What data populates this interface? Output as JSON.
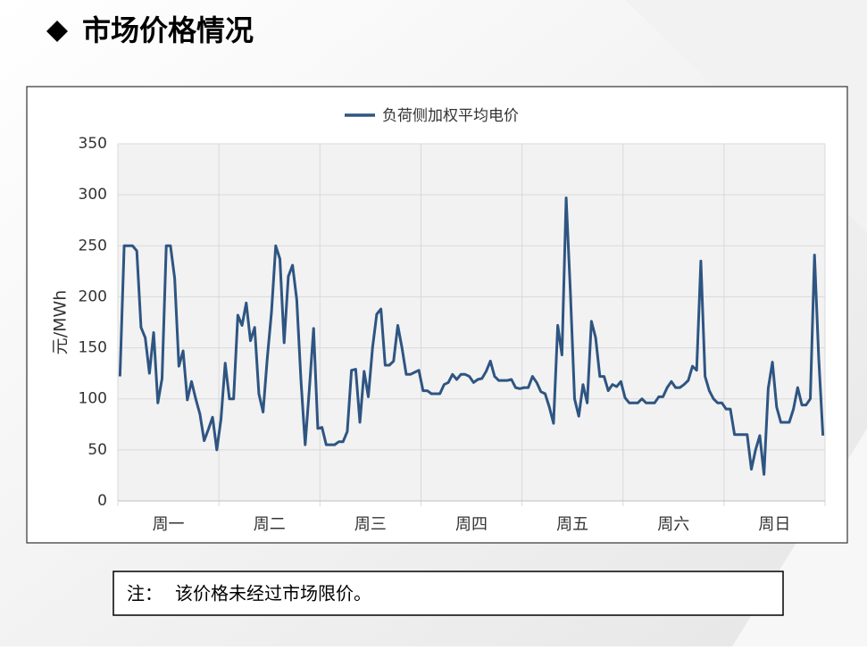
{
  "header": {
    "title": "市场价格情况"
  },
  "chart_data": {
    "type": "line",
    "y_label": "元/MWh",
    "categories": [
      null,
      null,
      null,
      null,
      null,
      null,
      null,
      null,
      null,
      null,
      null,
      null,
      "周一",
      null,
      null,
      null,
      null,
      null,
      null,
      null,
      null,
      null,
      null,
      null,
      null,
      null,
      null,
      null,
      null,
      null,
      null,
      null,
      null,
      null,
      null,
      null,
      "周二",
      null,
      null,
      null,
      null,
      null,
      null,
      null,
      null,
      null,
      null,
      null,
      null,
      null,
      null,
      null,
      null,
      null,
      null,
      null,
      null,
      null,
      null,
      null,
      "周三",
      null,
      null,
      null,
      null,
      null,
      null,
      null,
      null,
      null,
      null,
      null,
      null,
      null,
      null,
      null,
      null,
      null,
      null,
      null,
      null,
      null,
      null,
      null,
      "周四",
      null,
      null,
      null,
      null,
      null,
      null,
      null,
      null,
      null,
      null,
      null,
      null,
      null,
      null,
      null,
      null,
      null,
      null,
      null,
      null,
      null,
      null,
      null,
      "周五",
      null,
      null,
      null,
      null,
      null,
      null,
      null,
      null,
      null,
      null,
      null,
      null,
      null,
      null,
      null,
      null,
      null,
      null,
      null,
      null,
      null,
      null,
      null,
      "周六",
      null,
      null,
      null,
      null,
      null,
      null,
      null,
      null,
      null,
      null,
      null,
      null,
      null,
      null,
      null,
      null,
      null,
      null,
      null,
      null,
      null,
      null,
      null,
      "周日",
      null,
      null,
      null,
      null,
      null,
      null,
      null,
      null,
      null,
      null,
      null
    ],
    "series": [
      {
        "name": "负荷侧加权平均电价",
        "color": "#2e5582",
        "values": [
          122,
          250,
          250,
          250,
          245,
          170,
          160,
          125,
          165,
          96,
          120,
          250,
          250,
          218,
          132,
          147,
          99,
          117,
          100,
          85,
          59,
          70,
          82,
          50,
          80,
          135,
          100,
          100,
          182,
          172,
          194,
          157,
          170,
          105,
          87,
          140,
          185,
          250,
          237,
          155,
          220,
          231,
          197,
          118,
          55,
          110,
          169,
          71,
          72,
          55,
          55,
          55,
          58,
          58,
          68,
          128,
          129,
          77,
          127,
          102,
          150,
          183,
          188,
          133,
          133,
          137,
          172,
          150,
          124,
          124,
          126,
          128,
          108,
          108,
          105,
          105,
          105,
          114,
          116,
          124,
          119,
          124,
          124,
          122,
          116,
          119,
          120,
          127,
          137,
          122,
          118,
          118,
          118,
          119,
          111,
          110,
          111,
          111,
          122,
          116,
          107,
          105,
          92,
          76,
          172,
          143,
          297,
          205,
          100,
          83,
          114,
          96,
          176,
          160,
          122,
          122,
          108,
          114,
          112,
          117,
          101,
          96,
          96,
          96,
          100,
          96,
          96,
          96,
          102,
          102,
          111,
          117,
          111,
          111,
          114,
          118,
          132,
          128,
          235,
          122,
          108,
          100,
          96,
          96,
          90,
          90,
          65,
          65,
          65,
          65,
          31,
          50,
          64,
          26,
          110,
          136,
          92,
          77,
          77,
          77,
          90,
          111,
          94,
          94,
          100,
          241,
          140,
          64
        ]
      }
    ],
    "ylim": [
      0,
      350
    ],
    "yticks": [
      0,
      50,
      100,
      150,
      200,
      250,
      300,
      350
    ],
    "grid": true,
    "legend": "top"
  },
  "note": {
    "label": "注：",
    "text": "该价格未经过市场限价。"
  }
}
